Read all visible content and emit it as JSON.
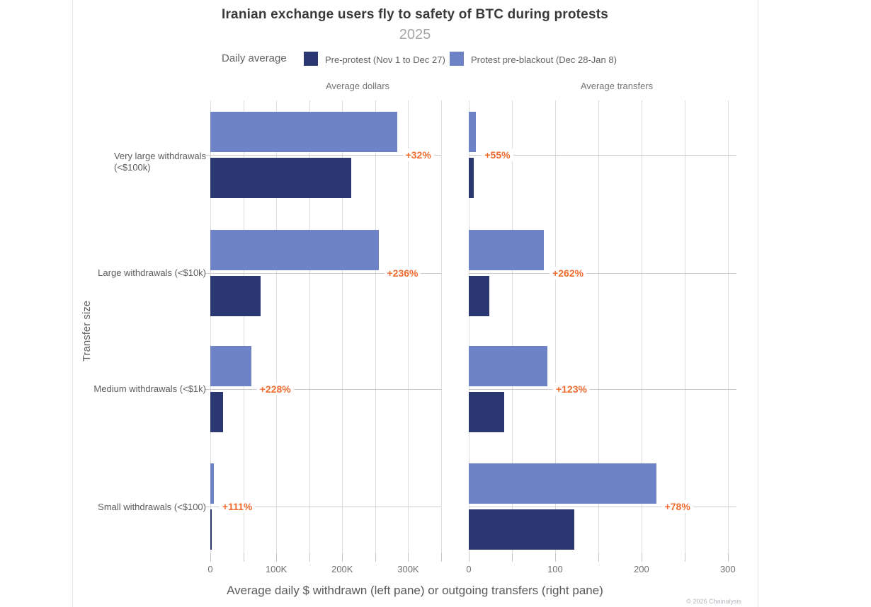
{
  "page": {
    "title": "Iranian exchange users fly to safety of BTC during protests",
    "subtitle": "2025",
    "copyright": "© 2026 Chainalysis"
  },
  "legend": {
    "label": "Daily average",
    "series": [
      {
        "name": "Pre-protest (Nov 1 to Dec 27)",
        "color": "#2b3770"
      },
      {
        "name": "Protest pre-blackout (Dec 28-Jan 8)",
        "color": "#6e83c6"
      }
    ]
  },
  "axes": {
    "x_label": "Average daily $ withdrawn (left pane) or outgoing transfers (right pane)",
    "y_label": "Transfer size"
  },
  "chart_data": {
    "type": "bar",
    "orientation": "horizontal",
    "title": "Iranian exchange users fly to safety of BTC during protests",
    "subtitle": "2025",
    "legend_label": "Daily average",
    "legend_position": "top",
    "grid": true,
    "xlabel": "Average daily $ withdrawn (left pane) or outgoing transfers (right pane)",
    "ylabel": "Transfer size",
    "categories": [
      "Very large withdrawals (<$100k)",
      "Large withdrawals (<$10k)",
      "Medium withdrawals (<$1k)",
      "Small withdrawals (<$100)"
    ],
    "category_label_lines": [
      [
        "Very large withdrawals",
        "(<$100k)"
      ],
      [
        "Large withdrawals (<$10k)"
      ],
      [
        "Medium withdrawals (<$1k)"
      ],
      [
        "Small withdrawals (<$100)"
      ]
    ],
    "colors": {
      "pre_protest": "#2b3770",
      "protest_pre_blackout": "#6e83c6",
      "pct_label": "#ef6c31"
    },
    "panes": [
      {
        "title": "Average dollars",
        "xlim": [
          0,
          350000
        ],
        "ticks": [
          {
            "value": 0,
            "label": "0"
          },
          {
            "value": 50000,
            "label": ""
          },
          {
            "value": 100000,
            "label": "100K"
          },
          {
            "value": 150000,
            "label": ""
          },
          {
            "value": 200000,
            "label": "200K"
          },
          {
            "value": 250000,
            "label": ""
          },
          {
            "value": 300000,
            "label": "300K"
          },
          {
            "value": 350000,
            "label": ""
          }
        ],
        "series": [
          {
            "name": "Pre-protest (Nov 1 to Dec 27)",
            "values": [
              214000,
              76000,
              19000,
              2500
            ]
          },
          {
            "name": "Protest pre-blackout (Dec 28-Jan 8)",
            "values": [
              283000,
              255000,
              62000,
              5300
            ]
          }
        ],
        "pct_change": [
          "+32%",
          "+236%",
          "+228%",
          "+111%"
        ]
      },
      {
        "title": "Average transfers",
        "xlim": [
          0,
          310
        ],
        "ticks": [
          {
            "value": 0,
            "label": "0"
          },
          {
            "value": 50,
            "label": ""
          },
          {
            "value": 100,
            "label": "100"
          },
          {
            "value": 150,
            "label": ""
          },
          {
            "value": 200,
            "label": "200"
          },
          {
            "value": 250,
            "label": ""
          },
          {
            "value": 300,
            "label": "300"
          }
        ],
        "series": [
          {
            "name": "Pre-protest (Nov 1 to Dec 27)",
            "values": [
              5.5,
              24,
              41,
              122
            ]
          },
          {
            "name": "Protest pre-blackout (Dec 28-Jan 8)",
            "values": [
              8.5,
              87,
              91,
              217
            ]
          }
        ],
        "pct_change": [
          "+55%",
          "+262%",
          "+123%",
          "+78%"
        ]
      }
    ]
  }
}
